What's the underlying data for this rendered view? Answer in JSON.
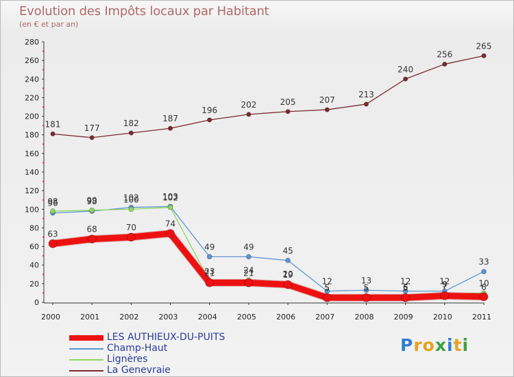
{
  "chart_data": {
    "type": "line",
    "title": "Evolution des Impôts locaux par Habitant",
    "subtitle": "(en € et par an)",
    "xlabel": "",
    "ylabel": "",
    "ylim": [
      0,
      280
    ],
    "yticks": [
      0,
      20,
      40,
      60,
      80,
      100,
      120,
      140,
      160,
      180,
      200,
      220,
      240,
      260,
      280
    ],
    "categories": [
      "2000",
      "2001",
      "2002",
      "2003",
      "2004",
      "2005",
      "2006",
      "2007",
      "2008",
      "2009",
      "2010",
      "2011"
    ],
    "grid": false,
    "legend_position": "bottom-left",
    "series": [
      {
        "name": "La Genevraie",
        "color": "#7a2a32",
        "values": [
          181,
          177,
          182,
          187,
          196,
          202,
          205,
          207,
          213,
          240,
          256,
          265
        ]
      },
      {
        "name": "Champ-Haut",
        "color": "#5b95d0",
        "values": [
          96,
          98,
          102,
          103,
          49,
          49,
          45,
          12,
          13,
          12,
          12,
          33
        ]
      },
      {
        "name": "Lignères",
        "color": "#8fd860",
        "values": [
          98,
          99,
          100,
          102,
          23,
          24,
          20,
          5,
          5,
          6,
          9,
          10
        ]
      },
      {
        "name": "LES AUTHIEUX-DU-PUITS",
        "color": "#ee1111",
        "values": [
          63,
          68,
          70,
          74,
          21,
          21,
          19,
          5,
          5,
          5,
          7,
          6
        ]
      }
    ]
  },
  "legend": [
    {
      "name": "LES AUTHIEUX-DU-PUITS",
      "color": "#ee1111"
    },
    {
      "name": "Champ-Haut",
      "color": "#5b95d0"
    },
    {
      "name": "Lignères",
      "color": "#8fd860"
    },
    {
      "name": "La Genevraie",
      "color": "#7a2a32"
    }
  ],
  "logo": {
    "letters": [
      "P",
      "r",
      "o",
      "x",
      "i",
      "t",
      "i"
    ],
    "colors": [
      "#2f7fd0",
      "#e8a020",
      "#e8a020",
      "#3fa040",
      "#2f7fd0",
      "#e8a020",
      "#3fa040"
    ]
  }
}
